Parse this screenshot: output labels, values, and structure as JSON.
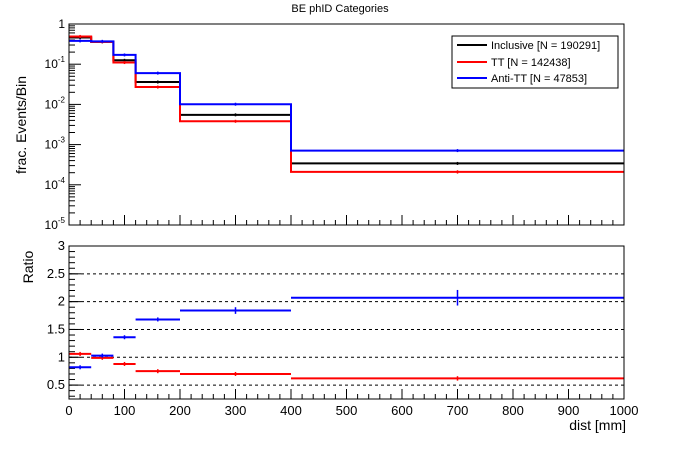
{
  "chart_data": [
    {
      "type": "line",
      "title": "BE phID Categories",
      "xlabel": "",
      "ylabel": "frac. Events/Bin",
      "yscale": "log",
      "xlim": [
        0,
        1000
      ],
      "ylim": [
        1e-05,
        1
      ],
      "y_tick_labels": [
        "10^-5",
        "10^-4",
        "10^-3",
        "10^-2",
        "10^-1",
        "1"
      ],
      "bin_edges": [
        0,
        40,
        80,
        120,
        200,
        400,
        1000
      ],
      "bin_centers": [
        20,
        60,
        100,
        160,
        300,
        700
      ],
      "legend_position": "top-right",
      "series": [
        {
          "name": "Inclusive [N = 190291]",
          "color": "#000000",
          "values": [
            0.46,
            0.36,
            0.125,
            0.036,
            0.0055,
            0.00034
          ],
          "errors": [
            0.004,
            0.004,
            0.002,
            0.0008,
            0.0002,
            2e-05
          ]
        },
        {
          "name": "TT [N = 142438]",
          "color": "#ff0000",
          "values": [
            0.49,
            0.36,
            0.11,
            0.027,
            0.0038,
            0.00021
          ],
          "errors": [
            0.004,
            0.004,
            0.002,
            0.0007,
            0.0002,
            2e-05
          ]
        },
        {
          "name": "Anti-TT [N = 47853]",
          "color": "#0000ff",
          "values": [
            0.38,
            0.37,
            0.17,
            0.06,
            0.0101,
            0.00071
          ],
          "errors": [
            0.006,
            0.006,
            0.004,
            0.0015,
            0.0004,
            4e-05
          ]
        }
      ]
    },
    {
      "type": "line",
      "title": "",
      "xlabel": "dist [mm]",
      "ylabel": "Ratio",
      "xlim": [
        0,
        1000
      ],
      "ylim": [
        0.25,
        3
      ],
      "x_ticks": [
        0,
        100,
        200,
        300,
        400,
        500,
        600,
        700,
        800,
        900,
        1000
      ],
      "y_ticks": [
        0.5,
        1,
        1.5,
        2,
        2.5,
        3
      ],
      "y_tick_labels": [
        "0.5",
        "1",
        "1.5",
        "2",
        "2.5",
        "3"
      ],
      "dashed_gridlines_y": [
        0.5,
        1,
        1.5,
        2,
        2.5
      ],
      "bin_edges": [
        0,
        40,
        80,
        120,
        200,
        400,
        1000
      ],
      "bin_centers": [
        20,
        60,
        100,
        160,
        300,
        700
      ],
      "series": [
        {
          "color": "#ff0000",
          "values": [
            1.06,
            0.99,
            0.88,
            0.75,
            0.7,
            0.62
          ],
          "errors": [
            0.01,
            0.01,
            0.01,
            0.015,
            0.02,
            0.04
          ]
        },
        {
          "color": "#0000ff",
          "values": [
            0.82,
            1.03,
            1.36,
            1.68,
            1.84,
            2.07
          ],
          "errors": [
            0.01,
            0.01,
            0.02,
            0.03,
            0.06,
            0.14
          ]
        }
      ]
    }
  ]
}
